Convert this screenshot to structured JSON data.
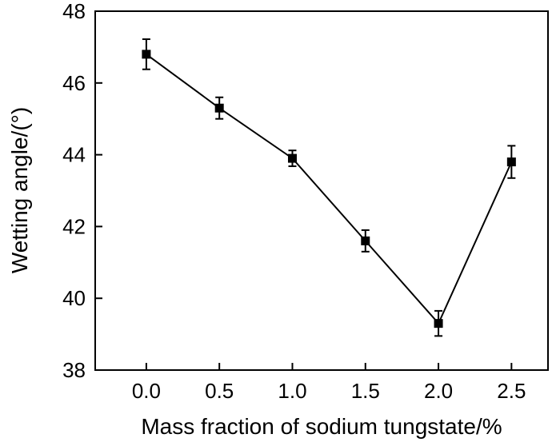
{
  "chart_data": {
    "type": "line",
    "title": "",
    "xlabel": "Mass fraction of sodium tungstate/%",
    "ylabel": "Wetting angle/(°)",
    "xlim": [
      -0.35,
      2.75
    ],
    "ylim": [
      38,
      48
    ],
    "xticks": [
      0.0,
      0.5,
      1.0,
      1.5,
      2.0,
      2.5
    ],
    "xtick_labels": [
      "0.0",
      "0.5",
      "1.0",
      "1.5",
      "2.0",
      "2.5"
    ],
    "yticks": [
      38,
      40,
      42,
      44,
      46,
      48
    ],
    "ytick_labels": [
      "38",
      "40",
      "42",
      "44",
      "46",
      "48"
    ],
    "grid": false,
    "legend": "none",
    "marker": "square",
    "color": "#000000",
    "series": [
      {
        "x": [
          0.0,
          0.5,
          1.0,
          1.5,
          2.0,
          2.5
        ],
        "y": [
          46.8,
          45.3,
          43.9,
          41.6,
          39.3,
          43.8
        ],
        "yerr": [
          0.42,
          0.3,
          0.22,
          0.3,
          0.35,
          0.45
        ]
      }
    ]
  }
}
